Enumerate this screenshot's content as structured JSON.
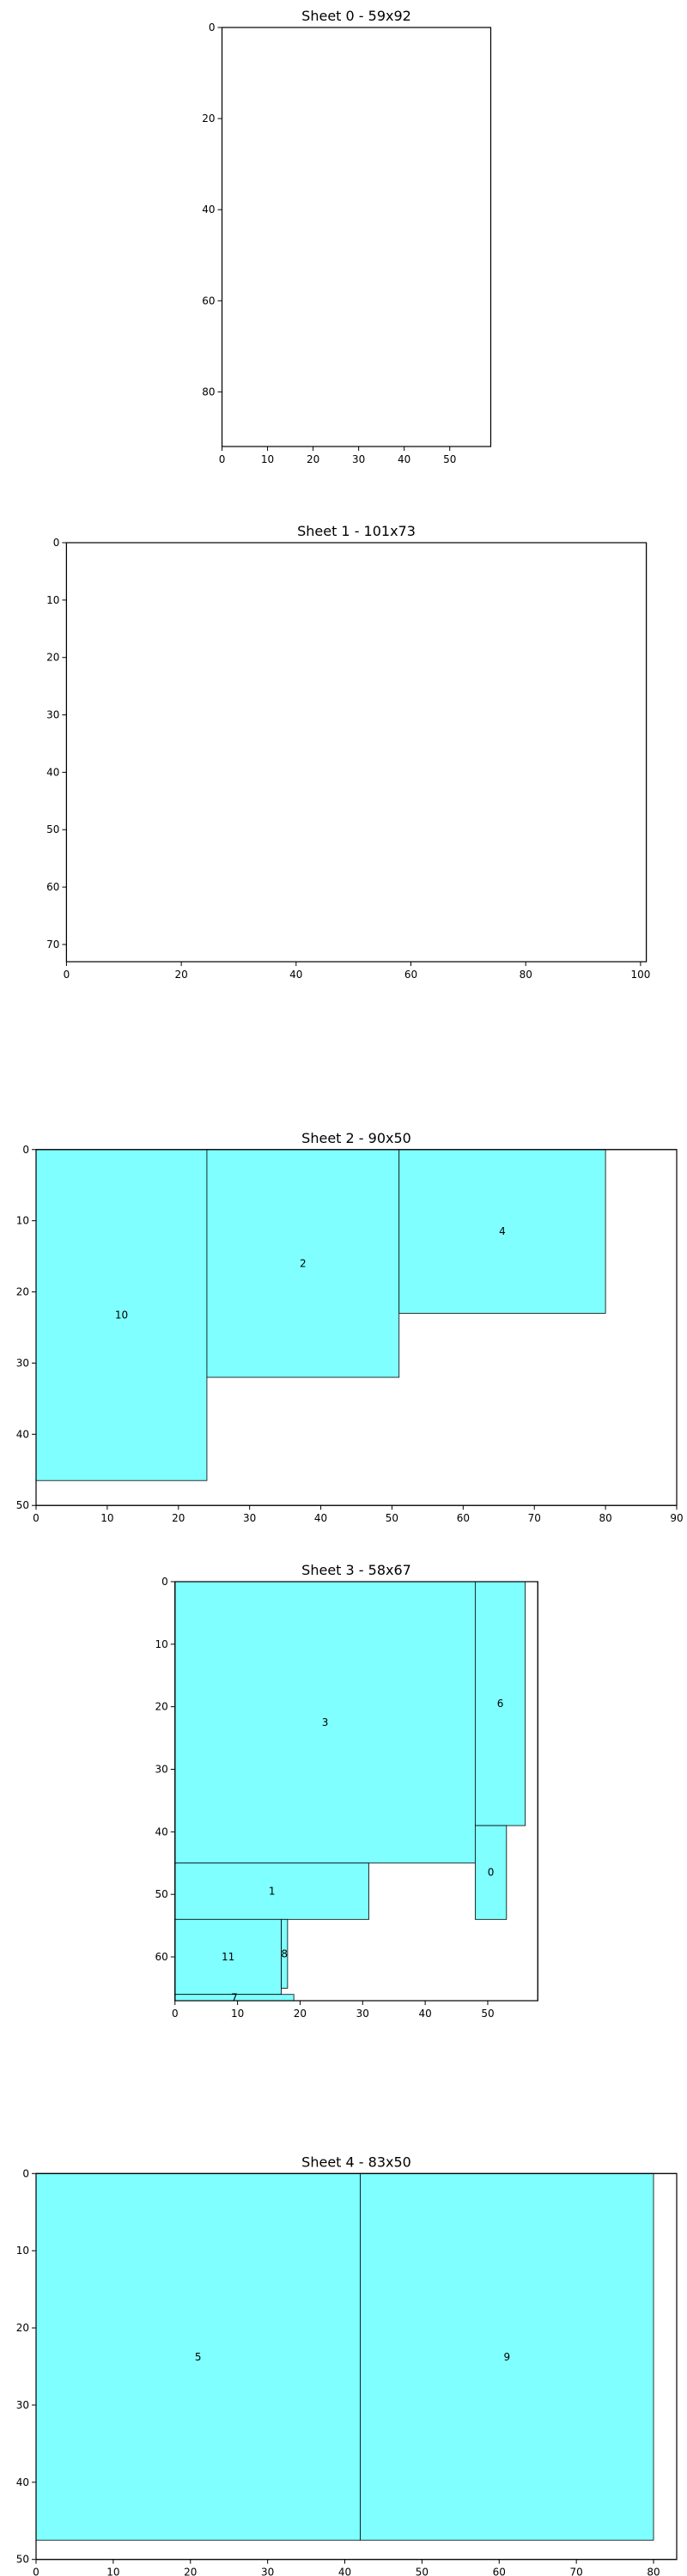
{
  "colors": {
    "piece_fill": "#7fffff",
    "piece_edge": "#000000",
    "sheet_edge": "#000000",
    "background": "#ffffff"
  },
  "chart_data": [
    {
      "type": "rect-packing",
      "title": "Sheet 0 - 59x92",
      "sheet": {
        "width": 59,
        "height": 92
      },
      "xlim": [
        0,
        59
      ],
      "ylim": [
        92,
        0
      ],
      "y_inverted": true,
      "xticks": [
        0,
        10,
        20,
        30,
        40,
        50
      ],
      "yticks": [
        0,
        20,
        40,
        60,
        80
      ],
      "grid": false,
      "pieces": []
    },
    {
      "type": "rect-packing",
      "title": "Sheet 1 - 101x73",
      "sheet": {
        "width": 101,
        "height": 73
      },
      "xlim": [
        0,
        101
      ],
      "ylim": [
        73,
        0
      ],
      "y_inverted": true,
      "xticks": [
        0,
        20,
        40,
        60,
        80,
        100
      ],
      "yticks": [
        0,
        10,
        20,
        30,
        40,
        50,
        60,
        70
      ],
      "grid": false,
      "pieces": []
    },
    {
      "type": "rect-packing",
      "title": "Sheet 2 - 90x50",
      "sheet": {
        "width": 90,
        "height": 50
      },
      "xlim": [
        0,
        90
      ],
      "ylim": [
        50,
        0
      ],
      "y_inverted": true,
      "xticks": [
        0,
        10,
        20,
        30,
        40,
        50,
        60,
        70,
        80,
        90
      ],
      "yticks": [
        0,
        10,
        20,
        30,
        40,
        50
      ],
      "grid": false,
      "pieces": [
        {
          "id": "10",
          "x": 0,
          "y": 0,
          "w": 24,
          "h": 46.5
        },
        {
          "id": "2",
          "x": 24,
          "y": 0,
          "w": 27,
          "h": 32
        },
        {
          "id": "4",
          "x": 51,
          "y": 0,
          "w": 29,
          "h": 23
        }
      ]
    },
    {
      "type": "rect-packing",
      "title": "Sheet 3 - 58x67",
      "sheet": {
        "width": 58,
        "height": 67
      },
      "xlim": [
        0,
        58
      ],
      "ylim": [
        67,
        0
      ],
      "y_inverted": true,
      "xticks": [
        0,
        10,
        20,
        30,
        40,
        50
      ],
      "yticks": [
        0,
        10,
        20,
        30,
        40,
        50,
        60
      ],
      "grid": false,
      "pieces": [
        {
          "id": "3",
          "x": 0,
          "y": 0,
          "w": 48,
          "h": 45
        },
        {
          "id": "6",
          "x": 48,
          "y": 0,
          "w": 8,
          "h": 39
        },
        {
          "id": "0",
          "x": 48,
          "y": 39,
          "w": 5,
          "h": 15
        },
        {
          "id": "1",
          "x": 0,
          "y": 45,
          "w": 31,
          "h": 9
        },
        {
          "id": "11",
          "x": 0,
          "y": 54,
          "w": 17,
          "h": 12
        },
        {
          "id": "8",
          "x": 17,
          "y": 54,
          "w": 1,
          "h": 11
        },
        {
          "id": "7",
          "x": 0,
          "y": 66,
          "w": 19,
          "h": 1
        }
      ]
    },
    {
      "type": "rect-packing",
      "title": "Sheet 4 - 83x50",
      "sheet": {
        "width": 83,
        "height": 50
      },
      "xlim": [
        0,
        83
      ],
      "ylim": [
        50,
        0
      ],
      "y_inverted": true,
      "xticks": [
        0,
        10,
        20,
        30,
        40,
        50,
        60,
        70,
        80
      ],
      "yticks": [
        0,
        10,
        20,
        30,
        40,
        50
      ],
      "grid": false,
      "pieces": [
        {
          "id": "5",
          "x": 0,
          "y": 0,
          "w": 42,
          "h": 47.5
        },
        {
          "id": "9",
          "x": 42,
          "y": 0,
          "w": 38,
          "h": 47.5
        }
      ]
    }
  ]
}
